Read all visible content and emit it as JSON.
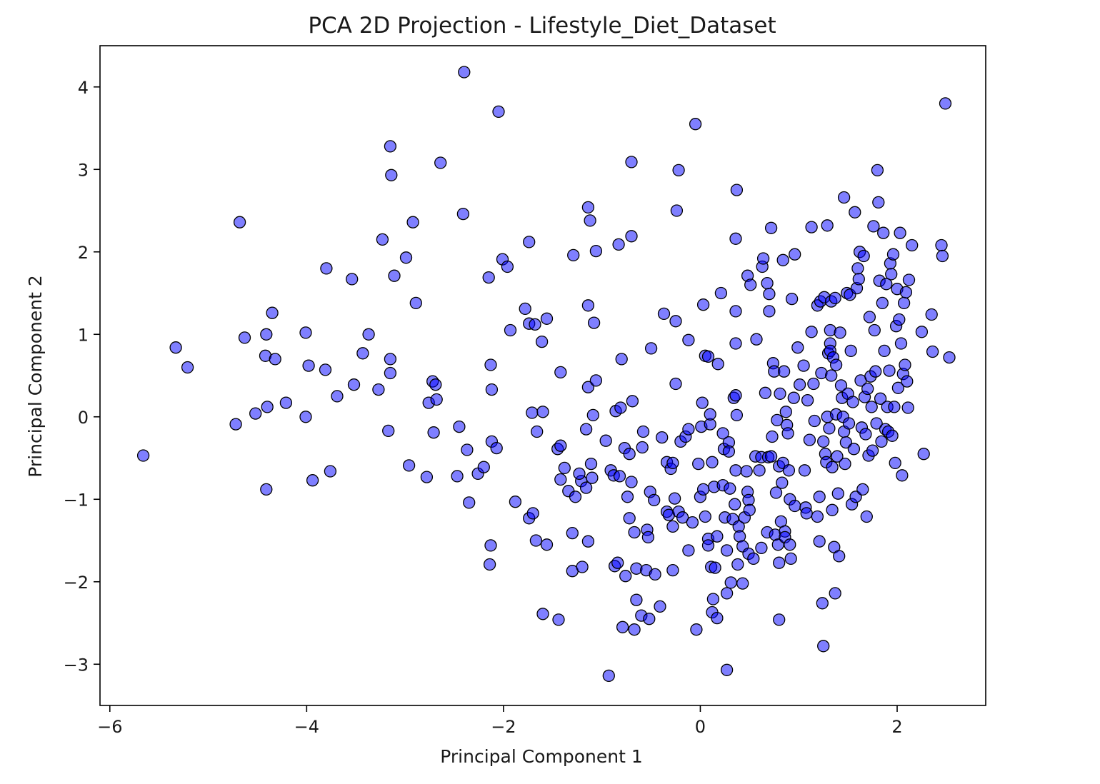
{
  "chart_data": {
    "type": "scatter",
    "title": "PCA 2D Projection - Lifestyle_Diet_Dataset",
    "xlabel": "Principal Component 1",
    "ylabel": "Principal Component 2",
    "xlim": [
      -6.1,
      2.9
    ],
    "ylim": [
      -3.5,
      4.5
    ],
    "xticks": [
      -6,
      -4,
      -2,
      0,
      2
    ],
    "yticks": [
      -3,
      -2,
      -1,
      0,
      1,
      2,
      3,
      4
    ],
    "xtick_labels": [
      "−6",
      "−4",
      "−2",
      "0",
      "2"
    ],
    "ytick_labels": [
      "−3",
      "−2",
      "−1",
      "0",
      "1",
      "2",
      "3",
      "4"
    ],
    "grid": false,
    "marker_color": "#0000ff",
    "marker_alpha": 0.5,
    "marker_edge_color": "#000000",
    "points": [
      [
        -5.66,
        -0.47
      ],
      [
        -5.33,
        0.84
      ],
      [
        -5.21,
        0.6
      ],
      [
        -4.68,
        2.36
      ],
      [
        -4.63,
        0.96
      ],
      [
        -4.72,
        -0.09
      ],
      [
        -4.52,
        0.04
      ],
      [
        -4.41,
        1.0
      ],
      [
        -4.4,
        0.12
      ],
      [
        -4.42,
        0.74
      ],
      [
        -4.35,
        1.26
      ],
      [
        -4.32,
        0.7
      ],
      [
        -4.21,
        0.17
      ],
      [
        -4.41,
        -0.88
      ],
      [
        -4.01,
        1.02
      ],
      [
        -3.98,
        0.62
      ],
      [
        -3.81,
        0.57
      ],
      [
        -4.01,
        0.0
      ],
      [
        -3.94,
        -0.77
      ],
      [
        -3.76,
        -0.66
      ],
      [
        -3.8,
        1.8
      ],
      [
        -3.69,
        0.25
      ],
      [
        -3.54,
        1.67
      ],
      [
        -3.52,
        0.39
      ],
      [
        -3.43,
        0.77
      ],
      [
        -3.37,
        1.0
      ],
      [
        -3.27,
        0.33
      ],
      [
        -3.23,
        2.15
      ],
      [
        -3.15,
        3.28
      ],
      [
        -3.14,
        2.93
      ],
      [
        -3.15,
        0.7
      ],
      [
        -3.15,
        0.53
      ],
      [
        -3.17,
        -0.17
      ],
      [
        -3.11,
        1.71
      ],
      [
        -2.99,
        1.93
      ],
      [
        -2.92,
        2.36
      ],
      [
        -2.89,
        1.38
      ],
      [
        -2.96,
        -0.59
      ],
      [
        -2.78,
        -0.73
      ],
      [
        -2.76,
        0.17
      ],
      [
        -2.72,
        0.43
      ],
      [
        -2.69,
        0.39
      ],
      [
        -2.68,
        0.21
      ],
      [
        -2.71,
        -0.19
      ],
      [
        -2.64,
        3.08
      ],
      [
        -2.4,
        4.18
      ],
      [
        -2.41,
        2.46
      ],
      [
        -2.45,
        -0.12
      ],
      [
        -2.47,
        -0.72
      ],
      [
        -2.37,
        -0.4
      ],
      [
        -2.35,
        -1.04
      ],
      [
        -2.26,
        -0.69
      ],
      [
        -2.2,
        -0.61
      ],
      [
        -2.15,
        1.69
      ],
      [
        -2.13,
        0.63
      ],
      [
        -2.12,
        0.33
      ],
      [
        -2.12,
        -0.3
      ],
      [
        -2.07,
        -0.38
      ],
      [
        -2.05,
        3.7
      ],
      [
        -2.01,
        1.91
      ],
      [
        -1.96,
        1.82
      ],
      [
        -1.93,
        1.05
      ],
      [
        -1.88,
        -1.03
      ],
      [
        -2.13,
        -1.56
      ],
      [
        -2.14,
        -1.79
      ],
      [
        -1.78,
        1.31
      ],
      [
        -1.74,
        2.12
      ],
      [
        -1.74,
        1.13
      ],
      [
        -1.68,
        1.12
      ],
      [
        -1.56,
        1.19
      ],
      [
        -1.61,
        0.91
      ],
      [
        -1.71,
        0.05
      ],
      [
        -1.6,
        0.06
      ],
      [
        -1.66,
        -0.18
      ],
      [
        -1.74,
        -1.23
      ],
      [
        -1.7,
        -1.17
      ],
      [
        -1.67,
        -1.5
      ],
      [
        -1.56,
        -1.55
      ],
      [
        -1.42,
        0.54
      ],
      [
        -1.45,
        -0.39
      ],
      [
        -1.42,
        -0.35
      ],
      [
        -1.38,
        -0.62
      ],
      [
        -1.42,
        -0.76
      ],
      [
        -1.34,
        -0.9
      ],
      [
        -1.29,
        1.96
      ],
      [
        -1.3,
        -1.41
      ],
      [
        -1.3,
        -1.87
      ],
      [
        -1.27,
        -0.97
      ],
      [
        -1.21,
        -0.78
      ],
      [
        -1.23,
        -0.69
      ],
      [
        -1.14,
        2.54
      ],
      [
        -1.12,
        2.38
      ],
      [
        -1.14,
        1.35
      ],
      [
        -1.14,
        0.36
      ],
      [
        -1.08,
        1.14
      ],
      [
        -1.06,
        2.01
      ],
      [
        -1.06,
        0.44
      ],
      [
        -1.09,
        0.02
      ],
      [
        -1.16,
        -0.15
      ],
      [
        -1.16,
        -0.86
      ],
      [
        -1.11,
        -0.57
      ],
      [
        -1.1,
        -0.74
      ],
      [
        -1.14,
        -1.51
      ],
      [
        -1.2,
        -1.82
      ],
      [
        -1.6,
        -2.39
      ],
      [
        -1.44,
        -2.46
      ],
      [
        -0.96,
        -0.29
      ],
      [
        -0.91,
        -0.65
      ],
      [
        -0.88,
        -0.71
      ],
      [
        -0.82,
        -0.72
      ],
      [
        -0.87,
        -1.81
      ],
      [
        -0.93,
        -3.14
      ],
      [
        -0.84,
        -1.77
      ],
      [
        -0.79,
        -2.55
      ],
      [
        -0.76,
        -1.93
      ],
      [
        -0.83,
        2.09
      ],
      [
        -0.7,
        3.09
      ],
      [
        -0.7,
        2.19
      ],
      [
        -0.8,
        0.7
      ],
      [
        -0.86,
        0.07
      ],
      [
        -0.81,
        0.11
      ],
      [
        -0.77,
        -0.38
      ],
      [
        -0.69,
        0.19
      ],
      [
        -0.72,
        -0.45
      ],
      [
        -0.7,
        -0.79
      ],
      [
        -0.74,
        -0.97
      ],
      [
        -0.72,
        -1.23
      ],
      [
        -0.67,
        -1.4
      ],
      [
        -0.67,
        -2.58
      ],
      [
        -0.65,
        -2.22
      ],
      [
        -0.65,
        -1.84
      ],
      [
        -0.6,
        -2.41
      ],
      [
        -0.58,
        -0.18
      ],
      [
        -0.59,
        -0.37
      ],
      [
        -0.54,
        -1.37
      ],
      [
        -0.53,
        -1.46
      ],
      [
        -0.55,
        -1.86
      ],
      [
        -0.52,
        -2.45
      ],
      [
        -0.5,
        0.83
      ],
      [
        -0.51,
        -0.91
      ],
      [
        -0.47,
        -1.01
      ],
      [
        -0.46,
        -1.91
      ],
      [
        -0.41,
        -2.3
      ],
      [
        -0.39,
        -0.25
      ],
      [
        -0.37,
        1.25
      ],
      [
        -0.34,
        -0.55
      ],
      [
        -0.34,
        -1.15
      ],
      [
        -0.3,
        -0.63
      ],
      [
        -0.28,
        -0.56
      ],
      [
        -0.32,
        -1.19
      ],
      [
        -0.28,
        -1.33
      ],
      [
        -0.28,
        -1.86
      ],
      [
        -0.25,
        0.4
      ],
      [
        -0.25,
        1.16
      ],
      [
        -0.24,
        2.5
      ],
      [
        -0.22,
        2.99
      ],
      [
        -0.26,
        -0.99
      ],
      [
        -0.22,
        -1.15
      ],
      [
        -0.18,
        -1.22
      ],
      [
        -0.2,
        -0.3
      ],
      [
        -0.15,
        -0.24
      ],
      [
        -0.12,
        0.93
      ],
      [
        -0.12,
        -0.15
      ],
      [
        -0.08,
        -1.28
      ],
      [
        -0.12,
        -1.62
      ],
      [
        -0.05,
        3.55
      ],
      [
        -0.04,
        -2.58
      ],
      [
        0.0,
        -0.97
      ],
      [
        -0.02,
        -0.57
      ],
      [
        0.01,
        -0.12
      ],
      [
        0.02,
        0.17
      ],
      [
        0.03,
        1.36
      ],
      [
        0.05,
        0.74
      ],
      [
        0.08,
        0.73
      ],
      [
        0.03,
        -0.88
      ],
      [
        0.05,
        -1.21
      ],
      [
        0.08,
        -1.48
      ],
      [
        0.08,
        -1.56
      ],
      [
        0.1,
        -0.09
      ],
      [
        0.1,
        0.03
      ],
      [
        0.12,
        -0.55
      ],
      [
        0.14,
        -0.85
      ],
      [
        0.11,
        -1.82
      ],
      [
        0.13,
        -2.21
      ],
      [
        0.12,
        -2.37
      ],
      [
        0.17,
        -2.44
      ],
      [
        0.17,
        -1.45
      ],
      [
        0.15,
        -1.83
      ],
      [
        0.18,
        0.64
      ],
      [
        0.21,
        1.5
      ],
      [
        0.23,
        -0.83
      ],
      [
        0.23,
        -0.2
      ],
      [
        0.25,
        -1.22
      ],
      [
        0.24,
        -0.39
      ],
      [
        0.27,
        -2.14
      ],
      [
        0.27,
        -3.07
      ],
      [
        0.27,
        -1.62
      ],
      [
        0.29,
        -0.31
      ],
      [
        0.29,
        -0.42
      ],
      [
        0.31,
        -2.01
      ],
      [
        0.3,
        -0.87
      ],
      [
        0.33,
        -1.24
      ],
      [
        0.34,
        0.23
      ],
      [
        0.36,
        -0.65
      ],
      [
        0.36,
        1.28
      ],
      [
        0.36,
        0.89
      ],
      [
        0.36,
        2.16
      ],
      [
        0.37,
        2.75
      ],
      [
        0.36,
        0.26
      ],
      [
        0.35,
        -1.06
      ],
      [
        0.37,
        0.02
      ],
      [
        0.38,
        -1.79
      ],
      [
        0.39,
        -1.33
      ],
      [
        0.4,
        -1.45
      ],
      [
        0.43,
        -1.57
      ],
      [
        0.43,
        -2.02
      ],
      [
        0.45,
        -1.22
      ],
      [
        0.47,
        -0.66
      ],
      [
        0.48,
        -0.91
      ],
      [
        0.49,
        -1.01
      ],
      [
        0.5,
        -1.13
      ],
      [
        0.48,
        1.71
      ],
      [
        0.49,
        -1.66
      ],
      [
        0.51,
        1.6
      ],
      [
        0.54,
        -1.72
      ],
      [
        0.56,
        -0.48
      ],
      [
        0.57,
        0.94
      ],
      [
        0.6,
        -0.65
      ],
      [
        0.62,
        -1.59
      ],
      [
        0.62,
        -0.49
      ],
      [
        0.63,
        1.82
      ],
      [
        0.64,
        1.92
      ],
      [
        0.66,
        0.29
      ],
      [
        0.68,
        1.62
      ],
      [
        0.68,
        -1.4
      ],
      [
        0.69,
        -0.49
      ],
      [
        0.7,
        1.49
      ],
      [
        0.7,
        1.28
      ],
      [
        0.72,
        2.29
      ],
      [
        0.72,
        -0.48
      ],
      [
        0.73,
        -0.24
      ],
      [
        0.74,
        0.65
      ],
      [
        0.75,
        0.55
      ],
      [
        0.76,
        -1.43
      ],
      [
        0.77,
        -0.92
      ],
      [
        0.78,
        -0.04
      ],
      [
        0.79,
        -1.55
      ],
      [
        0.8,
        -0.6
      ],
      [
        0.8,
        -1.77
      ],
      [
        0.8,
        -2.46
      ],
      [
        0.81,
        0.28
      ],
      [
        0.82,
        -1.27
      ],
      [
        0.83,
        -0.8
      ],
      [
        0.84,
        1.9
      ],
      [
        0.84,
        -0.56
      ],
      [
        0.85,
        0.55
      ],
      [
        0.86,
        -1.39
      ],
      [
        0.86,
        -1.46
      ],
      [
        0.87,
        0.06
      ],
      [
        0.88,
        -0.1
      ],
      [
        0.89,
        -0.2
      ],
      [
        0.9,
        -0.65
      ],
      [
        0.91,
        -1.0
      ],
      [
        0.91,
        -1.55
      ],
      [
        0.92,
        -1.72
      ],
      [
        0.93,
        1.43
      ],
      [
        0.95,
        0.23
      ],
      [
        0.96,
        1.97
      ],
      [
        0.96,
        -1.08
      ],
      [
        0.99,
        0.84
      ],
      [
        1.01,
        0.39
      ],
      [
        1.05,
        0.62
      ],
      [
        1.06,
        -0.65
      ],
      [
        1.07,
        -1.1
      ],
      [
        1.08,
        -1.17
      ],
      [
        1.09,
        0.2
      ],
      [
        1.11,
        -0.28
      ],
      [
        1.13,
        1.03
      ],
      [
        1.13,
        2.3
      ],
      [
        1.15,
        0.4
      ],
      [
        1.16,
        -0.05
      ],
      [
        1.19,
        1.35
      ],
      [
        1.19,
        -1.21
      ],
      [
        1.21,
        -0.97
      ],
      [
        1.21,
        -1.51
      ],
      [
        1.22,
        1.4
      ],
      [
        1.23,
        0.53
      ],
      [
        1.24,
        -2.26
      ],
      [
        1.25,
        -2.78
      ],
      [
        1.25,
        -0.3
      ],
      [
        1.26,
        1.45
      ],
      [
        1.27,
        -0.45
      ],
      [
        1.28,
        -0.55
      ],
      [
        1.29,
        2.32
      ],
      [
        1.29,
        0.0
      ],
      [
        1.3,
        0.77
      ],
      [
        1.31,
        -0.14
      ],
      [
        1.32,
        1.05
      ],
      [
        1.32,
        0.89
      ],
      [
        1.32,
        0.8
      ],
      [
        1.33,
        1.4
      ],
      [
        1.33,
        0.5
      ],
      [
        1.34,
        -0.61
      ],
      [
        1.34,
        -1.13
      ],
      [
        1.35,
        0.72
      ],
      [
        1.36,
        -1.58
      ],
      [
        1.37,
        -2.14
      ],
      [
        1.37,
        1.44
      ],
      [
        1.38,
        0.63
      ],
      [
        1.38,
        0.03
      ],
      [
        1.39,
        -0.48
      ],
      [
        1.4,
        -0.93
      ],
      [
        1.41,
        -1.69
      ],
      [
        1.42,
        1.02
      ],
      [
        1.43,
        0.38
      ],
      [
        1.44,
        0.23
      ],
      [
        1.45,
        0.0
      ],
      [
        1.46,
        2.66
      ],
      [
        1.46,
        -0.18
      ],
      [
        1.47,
        -0.57
      ],
      [
        1.48,
        -0.31
      ],
      [
        1.49,
        1.5
      ],
      [
        1.5,
        0.28
      ],
      [
        1.51,
        -0.08
      ],
      [
        1.52,
        1.48
      ],
      [
        1.53,
        0.8
      ],
      [
        1.54,
        -1.06
      ],
      [
        1.55,
        0.18
      ],
      [
        1.56,
        -0.39
      ],
      [
        1.57,
        2.48
      ],
      [
        1.58,
        -0.97
      ],
      [
        1.59,
        1.56
      ],
      [
        1.6,
        1.8
      ],
      [
        1.61,
        1.67
      ],
      [
        1.62,
        2.0
      ],
      [
        1.63,
        0.44
      ],
      [
        1.64,
        -0.13
      ],
      [
        1.65,
        -0.88
      ],
      [
        1.66,
        1.95
      ],
      [
        1.67,
        0.24
      ],
      [
        1.68,
        -0.21
      ],
      [
        1.69,
        -1.21
      ],
      [
        1.7,
        0.34
      ],
      [
        1.71,
        -0.47
      ],
      [
        1.72,
        1.21
      ],
      [
        1.73,
        0.49
      ],
      [
        1.74,
        0.12
      ],
      [
        1.75,
        -0.41
      ],
      [
        1.76,
        2.31
      ],
      [
        1.77,
        1.05
      ],
      [
        1.78,
        0.55
      ],
      [
        1.79,
        -0.08
      ],
      [
        1.8,
        2.99
      ],
      [
        1.81,
        2.6
      ],
      [
        1.82,
        1.65
      ],
      [
        1.83,
        0.22
      ],
      [
        1.84,
        -0.3
      ],
      [
        1.85,
        1.38
      ],
      [
        1.86,
        2.23
      ],
      [
        1.87,
        0.8
      ],
      [
        1.88,
        -0.15
      ],
      [
        1.89,
        1.61
      ],
      [
        1.9,
        0.12
      ],
      [
        1.91,
        -0.18
      ],
      [
        1.92,
        0.56
      ],
      [
        1.93,
        1.86
      ],
      [
        1.94,
        1.73
      ],
      [
        1.95,
        -0.23
      ],
      [
        1.96,
        1.97
      ],
      [
        1.97,
        0.12
      ],
      [
        1.98,
        -0.56
      ],
      [
        1.99,
        1.1
      ],
      [
        2.0,
        1.55
      ],
      [
        2.01,
        0.35
      ],
      [
        2.02,
        1.18
      ],
      [
        2.03,
        2.23
      ],
      [
        2.04,
        0.89
      ],
      [
        2.05,
        -0.71
      ],
      [
        2.06,
        0.52
      ],
      [
        2.07,
        1.38
      ],
      [
        2.08,
        0.63
      ],
      [
        2.09,
        1.51
      ],
      [
        2.1,
        0.43
      ],
      [
        2.11,
        0.11
      ],
      [
        2.12,
        1.66
      ],
      [
        2.15,
        2.08
      ],
      [
        2.25,
        1.03
      ],
      [
        2.27,
        -0.45
      ],
      [
        2.35,
        1.24
      ],
      [
        2.36,
        0.79
      ],
      [
        2.45,
        2.08
      ],
      [
        2.46,
        1.95
      ],
      [
        2.49,
        3.8
      ],
      [
        2.53,
        0.72
      ]
    ]
  }
}
